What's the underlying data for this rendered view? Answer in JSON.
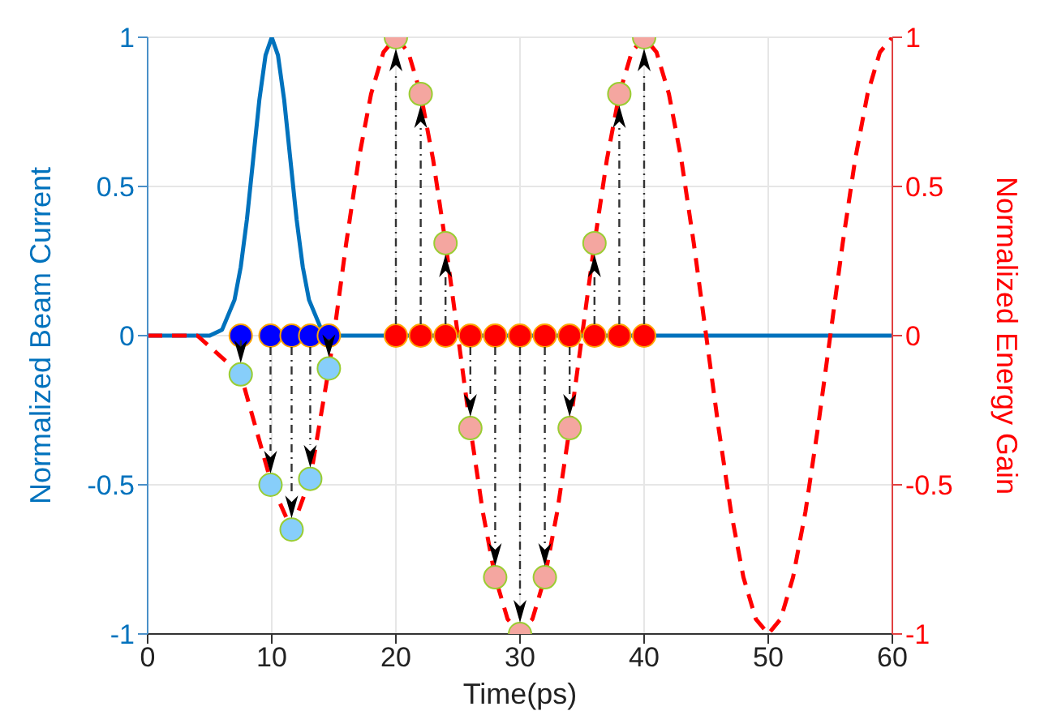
{
  "chart_data": {
    "type": "line",
    "xlabel": "Time(ps)",
    "ylabel": "Normalized Beam Current",
    "y2label": "Normalized Energy Gain",
    "xlim": [
      0,
      60
    ],
    "xticks": [
      0,
      10,
      20,
      30,
      40,
      50,
      60
    ],
    "ylim": [
      -1,
      1
    ],
    "yticks": [
      -1,
      -0.5,
      0,
      0.5,
      1
    ],
    "y2lim": [
      -1,
      1
    ],
    "y2ticks": [
      -1,
      -0.5,
      0,
      0.5,
      1
    ],
    "grid": true,
    "legend": false,
    "series": [
      {
        "axis": "y",
        "color": "#0072bd",
        "line_style": "solid",
        "marker": "none",
        "x": [
          0,
          4,
          5,
          6,
          7,
          7.5,
          8,
          8.5,
          9,
          9.5,
          10,
          10.5,
          11,
          11.5,
          12,
          12.5,
          13,
          14,
          15,
          16,
          60
        ],
        "values": [
          0,
          0,
          0,
          0.02,
          0.12,
          0.23,
          0.39,
          0.59,
          0.79,
          0.94,
          1,
          0.94,
          0.79,
          0.59,
          0.39,
          0.23,
          0.12,
          0.02,
          0,
          0,
          0
        ]
      },
      {
        "axis": "y2",
        "color": "#ff0000",
        "line_style": "dashed",
        "marker": "none",
        "x": [
          0,
          4,
          7.5,
          10,
          11.6,
          13.1,
          14.6,
          15,
          16,
          17,
          18,
          19,
          20,
          21,
          22,
          23,
          24,
          25,
          26,
          27,
          28,
          29,
          30,
          31,
          32,
          33,
          34,
          35,
          36,
          37,
          38,
          39,
          40,
          41,
          42,
          43,
          44,
          45,
          46,
          47,
          48,
          49,
          50,
          51,
          52,
          53,
          54,
          55,
          56,
          57,
          58,
          59,
          60
        ],
        "values": [
          0,
          0,
          -0.13,
          -0.5,
          -0.65,
          -0.48,
          -0.11,
          0,
          0.31,
          0.59,
          0.81,
          0.95,
          1,
          0.95,
          0.81,
          0.59,
          0.31,
          0,
          -0.31,
          -0.59,
          -0.81,
          -0.95,
          -1,
          -0.95,
          -0.81,
          -0.59,
          -0.31,
          0,
          0.31,
          0.59,
          0.81,
          0.95,
          1,
          0.95,
          0.81,
          0.59,
          0.31,
          0,
          -0.31,
          -0.59,
          -0.81,
          -0.95,
          -1,
          -0.95,
          -0.81,
          -0.59,
          -0.31,
          0,
          0.31,
          0.59,
          0.81,
          0.95,
          1
        ]
      },
      {
        "type": "scatter",
        "axis": "y",
        "color": "#0000ff",
        "marker": "circle",
        "x": [
          7.5,
          9.9,
          11.6,
          13.1,
          14.6
        ],
        "values": [
          0,
          0,
          0,
          0,
          0
        ]
      },
      {
        "type": "scatter",
        "axis": "y2",
        "color": "#87cefa",
        "marker": "circle",
        "x": [
          7.5,
          9.9,
          11.6,
          13.1,
          14.6
        ],
        "values": [
          -0.13,
          -0.5,
          -0.65,
          -0.48,
          -0.11
        ]
      },
      {
        "type": "scatter",
        "axis": "y",
        "color": "#ff0000",
        "marker": "circle",
        "x": [
          20,
          22,
          24,
          26,
          28,
          30,
          32,
          34,
          36,
          38,
          40
        ],
        "values": [
          0,
          0,
          0,
          0,
          0,
          0,
          0,
          0,
          0,
          0,
          0
        ]
      },
      {
        "type": "scatter",
        "axis": "y2",
        "color": "#f4a6a0",
        "marker": "circle",
        "x": [
          20,
          22,
          24,
          26,
          28,
          30,
          32,
          34,
          36,
          38,
          40
        ],
        "values": [
          1,
          0.81,
          0.31,
          -0.31,
          -0.81,
          -1,
          -0.81,
          -0.31,
          0.31,
          0.81,
          1
        ]
      }
    ]
  }
}
